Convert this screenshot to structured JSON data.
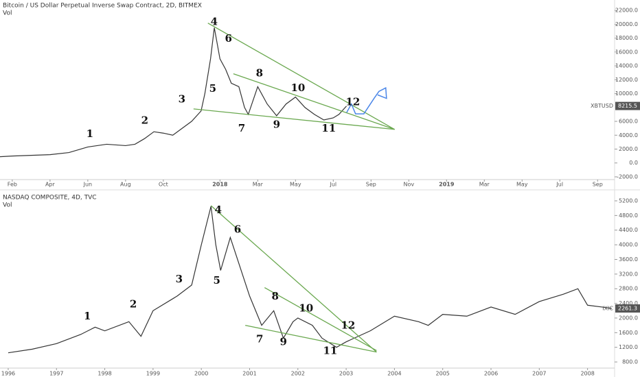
{
  "chart_data": [
    {
      "type": "line",
      "title": "Bitcoin / US Dollar Perpetual Inverse Swap Contract, 2D, BITMEX",
      "subtitle": "Vol",
      "color": "#333333",
      "x": [
        0.35,
        1,
        2,
        3,
        4,
        5,
        6,
        7,
        7.5,
        8,
        8.5,
        9,
        9.5,
        10,
        10.5,
        11,
        11.2,
        11.5,
        11.7,
        12,
        12.3,
        12.6,
        13,
        13.3,
        13.5,
        14,
        14.5,
        15,
        15.5,
        16,
        16.5,
        17,
        17.5,
        18,
        18.3,
        18.7
      ],
      "values": [
        900,
        1000,
        1100,
        1200,
        1500,
        2300,
        2700,
        2500,
        2700,
        3500,
        4500,
        4300,
        4000,
        5000,
        6000,
        7500,
        10000,
        15000,
        19500,
        15000,
        13500,
        11500,
        11000,
        8000,
        7000,
        11000,
        8500,
        6800,
        8500,
        9500,
        8000,
        7000,
        6200,
        6500,
        7000,
        8200
      ],
      "xlim": [
        0.35,
        32.9
      ],
      "ylim": [
        -2200,
        23000
      ],
      "xticks": [
        {
          "value": 1,
          "label": "Feb"
        },
        {
          "value": 3,
          "label": "Apr"
        },
        {
          "value": 5,
          "label": "Jun"
        },
        {
          "value": 7,
          "label": "Aug"
        },
        {
          "value": 9,
          "label": "Oct"
        },
        {
          "value": 12,
          "label": "2018"
        },
        {
          "value": 14,
          "label": "Mar"
        },
        {
          "value": 16,
          "label": "May"
        },
        {
          "value": 18,
          "label": "Jul"
        },
        {
          "value": 20,
          "label": "Sep"
        },
        {
          "value": 22,
          "label": "Nov"
        },
        {
          "value": 24,
          "label": "2019"
        },
        {
          "value": 26,
          "label": "Mar"
        },
        {
          "value": 28,
          "label": "May"
        },
        {
          "value": 30,
          "label": "Jul"
        },
        {
          "value": 32,
          "label": "Sep"
        }
      ],
      "yticks": [
        {
          "value": 22000,
          "label": "22000.0"
        },
        {
          "value": 20000,
          "label": "20000.0"
        },
        {
          "value": 18000,
          "label": "18000.0"
        },
        {
          "value": 16000,
          "label": "16000.0"
        },
        {
          "value": 14000,
          "label": "14000.0"
        },
        {
          "value": 12000,
          "label": "12000.0"
        },
        {
          "value": 10000,
          "label": "10000.0"
        },
        {
          "value": 6000,
          "label": "6000.0"
        },
        {
          "value": 4000,
          "label": "4000.0"
        },
        {
          "value": 2000,
          "label": "2000.0"
        },
        {
          "value": 0,
          "label": "0.0"
        },
        {
          "value": -2000,
          "label": "-2000.0"
        }
      ],
      "last_name": "XBTUSD",
      "last_value": 8215.5,
      "last_value_label": "8215.5",
      "annotations": [
        {
          "text": "1",
          "x": 5.11,
          "y": 4130
        },
        {
          "text": "2",
          "x": 8.02,
          "y": 6060
        },
        {
          "text": "3",
          "x": 9.98,
          "y": 9100
        },
        {
          "text": "4",
          "x": 11.69,
          "y": 20270
        },
        {
          "text": "5",
          "x": 11.62,
          "y": 10630
        },
        {
          "text": "6",
          "x": 12.45,
          "y": 17840
        },
        {
          "text": "7",
          "x": 13.15,
          "y": 4940
        },
        {
          "text": "8",
          "x": 14.09,
          "y": 12860
        },
        {
          "text": "9",
          "x": 15.0,
          "y": 5450
        },
        {
          "text": "10",
          "x": 16.13,
          "y": 10730
        },
        {
          "text": "11",
          "x": 17.76,
          "y": 4940
        },
        {
          "text": "12",
          "x": 19.04,
          "y": 8700
        }
      ],
      "trendlines": [
        [
          11.36,
          20170,
          21.25,
          4840
        ],
        [
          10.6,
          7790,
          21.25,
          4840
        ],
        [
          12.71,
          12860,
          21.25,
          4840
        ]
      ],
      "trendline_color": "#6aa84f",
      "projection": {
        "color": "#4a86e8",
        "x": [
          18.71,
          18.96,
          19.18,
          19.62,
          20.16,
          20.42,
          20.78,
          20.82,
          20.35
        ],
        "values": [
          7280,
          8500,
          7080,
          7080,
          9310,
          10320,
          10830,
          9310,
          9820
        ]
      }
    },
    {
      "type": "line",
      "title": "NASDAQ COMPOSITE, 4D, TVC",
      "subtitle": "Vol",
      "color": "#333333",
      "x": [
        1996.0,
        1996.5,
        1997.0,
        1997.5,
        1997.8,
        1998.0,
        1998.5,
        1998.75,
        1999.0,
        1999.5,
        1999.8,
        2000.0,
        2000.2,
        2000.3,
        2000.4,
        2000.6,
        2000.8,
        2001.0,
        2001.25,
        2001.5,
        2001.7,
        2001.9,
        2002.0,
        2002.3,
        2002.5,
        2002.8,
        2003.0,
        2003.5,
        2004.0,
        2004.5,
        2004.7,
        2005.0,
        2005.5,
        2006.0,
        2006.5,
        2007.0,
        2007.5,
        2007.8,
        2008.0,
        2008.3,
        2008.5
      ],
      "values": [
        1050,
        1150,
        1300,
        1550,
        1750,
        1650,
        1900,
        1500,
        2200,
        2600,
        2900,
        4000,
        5050,
        4000,
        3300,
        4200,
        3400,
        2600,
        1800,
        2200,
        1450,
        1900,
        2000,
        1800,
        1450,
        1200,
        1350,
        1650,
        2050,
        1900,
        1800,
        2100,
        2050,
        2300,
        2100,
        2450,
        2650,
        2800,
        2350,
        2300,
        2261.3
      ],
      "xlim": [
        1995.83,
        2008.56
      ],
      "ylim": [
        670,
        5350
      ],
      "xticks": [
        1996,
        1997,
        1998,
        1999,
        2000,
        2001,
        2002,
        2003,
        2004,
        2005,
        2006,
        2007,
        2008
      ],
      "yticks": [
        {
          "value": 5200,
          "label": "5200.0"
        },
        {
          "value": 4800,
          "label": "4800.0"
        },
        {
          "value": 4400,
          "label": "4400.0"
        },
        {
          "value": 4000,
          "label": "4000.0"
        },
        {
          "value": 3600,
          "label": "3600.0"
        },
        {
          "value": 3200,
          "label": "3200.0"
        },
        {
          "value": 2800,
          "label": "2800.0"
        },
        {
          "value": 2400,
          "label": "2400.0"
        },
        {
          "value": 2000,
          "label": "2000.0"
        },
        {
          "value": 1600,
          "label": "1600.0"
        },
        {
          "value": 1200,
          "label": "1200.0"
        },
        {
          "value": 800,
          "label": "800.0"
        }
      ],
      "last_name": "IXIC",
      "last_value": 2261.3,
      "last_value_label": "2261.3",
      "annotations": [
        {
          "text": "1",
          "x": 1997.64,
          "y": 2040
        },
        {
          "text": "2",
          "x": 1998.59,
          "y": 2360
        },
        {
          "text": "3",
          "x": 1999.54,
          "y": 3050
        },
        {
          "text": "4",
          "x": 2000.35,
          "y": 4940
        },
        {
          "text": "5",
          "x": 2000.32,
          "y": 3010
        },
        {
          "text": "6",
          "x": 2000.75,
          "y": 4400
        },
        {
          "text": "7",
          "x": 2001.21,
          "y": 1410
        },
        {
          "text": "8",
          "x": 2001.53,
          "y": 2580
        },
        {
          "text": "9",
          "x": 2001.7,
          "y": 1330
        },
        {
          "text": "10",
          "x": 2002.17,
          "y": 2250
        },
        {
          "text": "11",
          "x": 2002.67,
          "y": 1090
        },
        {
          "text": "12",
          "x": 2003.04,
          "y": 1780
        }
      ],
      "trendlines": [
        [
          2000.2,
          5070,
          2003.63,
          1070
        ],
        [
          2000.91,
          1800,
          2003.63,
          1070
        ],
        [
          2001.31,
          2830,
          2003.63,
          1110
        ]
      ],
      "trendline_color": "#6aa84f"
    }
  ]
}
